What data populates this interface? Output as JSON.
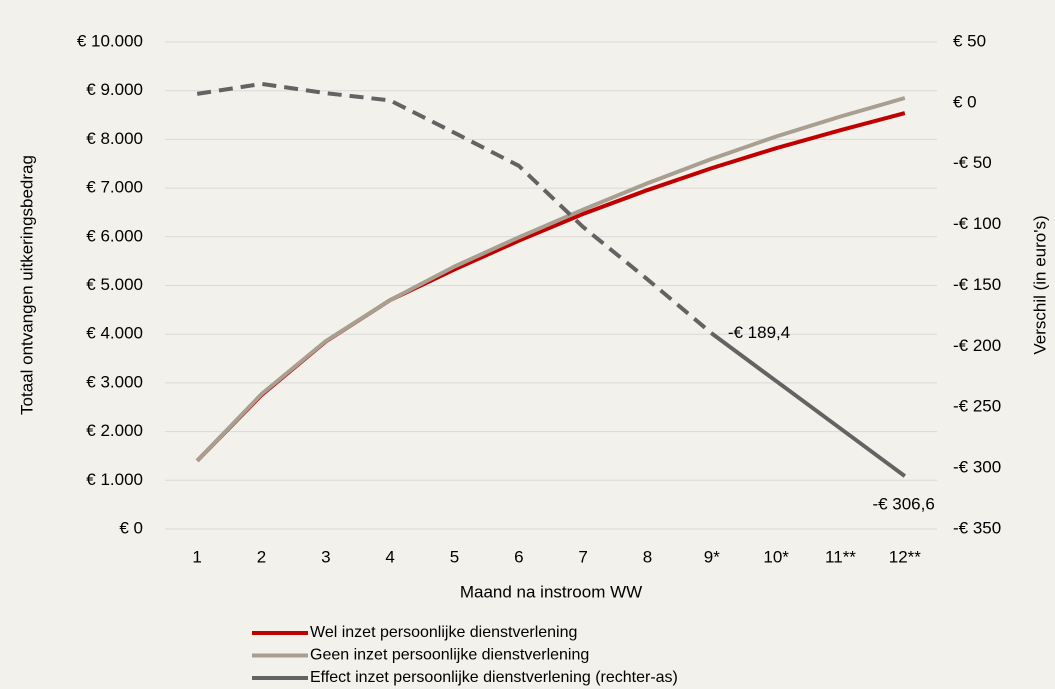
{
  "chart_data": {
    "type": "line",
    "x_label": "Maand na instroom WW",
    "y_label": "Totaal  ontvangen uitkeringsbedrag",
    "y2_label": "Verschil (in euro's)",
    "categories": [
      "1",
      "2",
      "3",
      "4",
      "5",
      "6",
      "7",
      "8",
      "9*",
      "10*",
      "11**",
      "12**"
    ],
    "series": [
      {
        "name": "Wel inzet persoonlijke dienstverlening",
        "color": "#c00000",
        "values": [
          1400,
          2750,
          3850,
          4700,
          5330,
          5920,
          6470,
          6960,
          7410,
          7820,
          8190,
          8540
        ]
      },
      {
        "name": "Geen inzet persoonlijke dienstverlening",
        "color": "#a89f91",
        "values": [
          1400,
          2770,
          3860,
          4700,
          5390,
          5990,
          6560,
          7100,
          7600,
          8060,
          8470,
          8850
        ]
      },
      {
        "name": "Effect inzet persoonlijke dienstverlening (rechter-as)",
        "color": "#636363",
        "axis": "y2",
        "dashed_until_index": 8,
        "values": [
          7.4,
          15.6,
          8,
          2,
          -24.6,
          -51.7,
          -102,
          -145,
          -189.4,
          -228.5,
          -267.5,
          -306.6
        ],
        "value_labels": [
          null,
          null,
          null,
          null,
          null,
          null,
          null,
          null,
          "-€ 189,4",
          null,
          null,
          "-€ 306,6"
        ]
      }
    ],
    "ylim": [
      0,
      10000
    ],
    "yticks": [
      {
        "value": 0,
        "label": "€ 0"
      },
      {
        "value": 1000,
        "label": "€ 1.000"
      },
      {
        "value": 2000,
        "label": "€ 2.000"
      },
      {
        "value": 3000,
        "label": "€ 3.000"
      },
      {
        "value": 4000,
        "label": "€ 4.000"
      },
      {
        "value": 5000,
        "label": "€ 5.000"
      },
      {
        "value": 6000,
        "label": "€ 6.000"
      },
      {
        "value": 7000,
        "label": "€ 7.000"
      },
      {
        "value": 8000,
        "label": "€ 8.000"
      },
      {
        "value": 9000,
        "label": "€ 9.000"
      },
      {
        "value": 10000,
        "label": "€ 10.000"
      }
    ],
    "y2lim": [
      -350,
      50
    ],
    "y2ticks": [
      {
        "value": 50,
        "label": "€ 50"
      },
      {
        "value": 0,
        "label": "€ 0"
      },
      {
        "value": -50,
        "label": "-€ 50"
      },
      {
        "value": -100,
        "label": "-€ 100"
      },
      {
        "value": -150,
        "label": "-€ 150"
      },
      {
        "value": -200,
        "label": "-€ 200"
      },
      {
        "value": -250,
        "label": "-€ 250"
      },
      {
        "value": -300,
        "label": "-€ 300"
      },
      {
        "value": -350,
        "label": "-€ 350"
      }
    ],
    "grid": true,
    "legend": "bottom"
  }
}
